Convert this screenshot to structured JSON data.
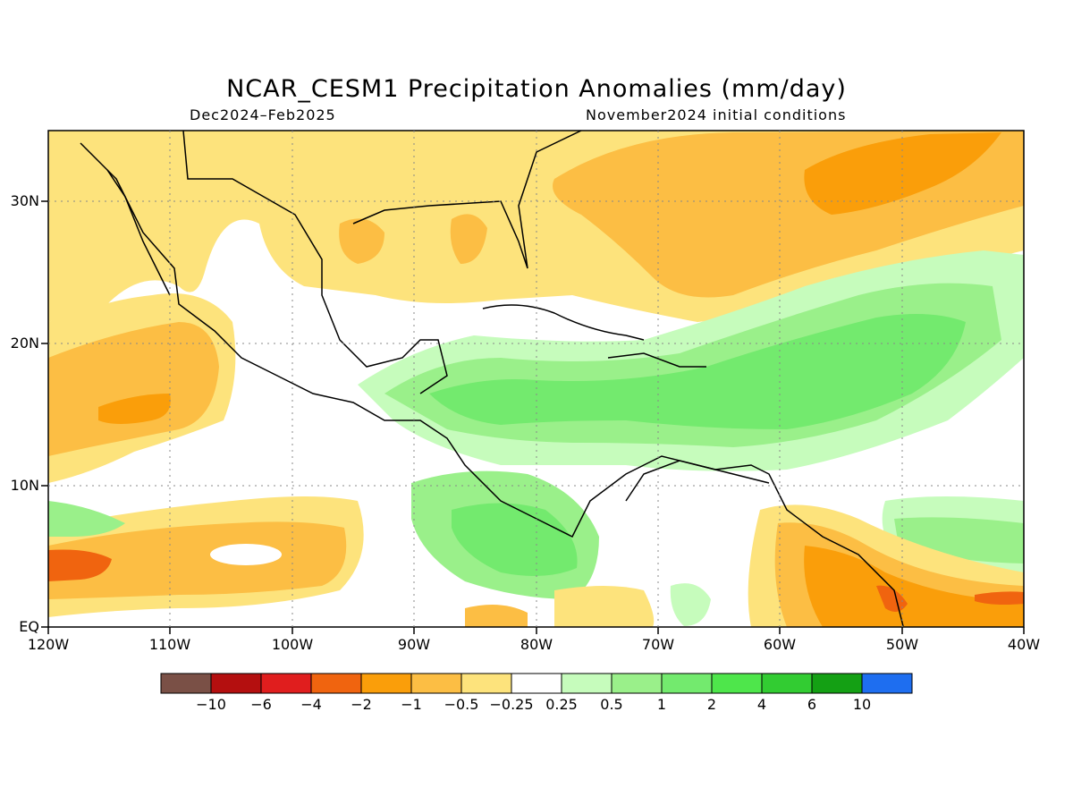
{
  "header": {
    "title": "NCAR_CESM1 Precipitation Anomalies (mm/day)",
    "period": "Dec2024–Feb2025",
    "initial_conditions": "November2024 initial conditions"
  },
  "map": {
    "lat_labels": [
      "30N",
      "20N",
      "10N",
      "EQ"
    ],
    "lon_labels": [
      "120W",
      "110W",
      "100W",
      "90W",
      "80W",
      "70W",
      "60W",
      "50W",
      "40W"
    ]
  },
  "colorbar": {
    "colors": [
      "#7a5046",
      "#b40f0f",
      "#e01e1e",
      "#f0640f",
      "#fa9e0a",
      "#fcbe44",
      "#fde37c",
      "#ffffff",
      "#c6fcbc",
      "#9af08a",
      "#73ea6e",
      "#4ee64b",
      "#32cc32",
      "#14a014",
      "#1e6ef0"
    ],
    "labels": [
      "−10",
      "−6",
      "−4",
      "−2",
      "−1",
      "−0.5",
      "−0.25",
      "0.25",
      "0.5",
      "1",
      "2",
      "4",
      "6",
      "10"
    ]
  }
}
